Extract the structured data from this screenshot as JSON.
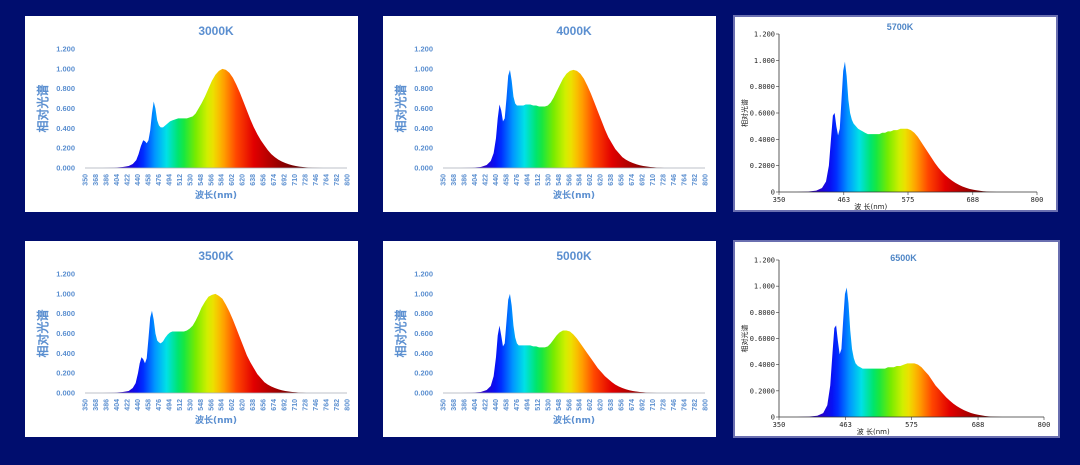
{
  "colors": {
    "background": "#000d6e",
    "panel": "#ffffff",
    "label_blue": "#5b8fd0",
    "axis": "#9aa0a8"
  },
  "chart_data": [
    {
      "type": "area",
      "style": 1,
      "title": "3000K",
      "xlabel": "波长(nm)",
      "ylabel": "相对光谱",
      "xlim": [
        350,
        800
      ],
      "ylim": [
        0,
        1.2
      ],
      "yticks": [
        "0.000",
        "0.200",
        "0.400",
        "0.600",
        "0.800",
        "1.000",
        "1.200"
      ],
      "xticks": [
        "350",
        "368",
        "386",
        "404",
        "422",
        "440",
        "458",
        "476",
        "494",
        "512",
        "530",
        "548",
        "566",
        "584",
        "602",
        "620",
        "638",
        "656",
        "674",
        "692",
        "710",
        "728",
        "746",
        "764",
        "782",
        "800"
      ],
      "x": [
        350,
        380,
        400,
        415,
        425,
        432,
        438,
        442,
        446,
        450,
        453,
        456,
        459,
        462,
        465,
        468,
        471,
        474,
        477,
        480,
        484,
        488,
        492,
        496,
        500,
        505,
        510,
        515,
        520,
        525,
        530,
        535,
        540,
        545,
        550,
        556,
        562,
        568,
        574,
        580,
        586,
        592,
        598,
        604,
        610,
        616,
        622,
        628,
        634,
        640,
        646,
        652,
        658,
        664,
        670,
        676,
        682,
        688,
        694,
        700,
        706,
        712,
        718,
        724,
        730,
        740,
        750,
        760,
        770,
        780,
        790,
        800
      ],
      "y": [
        0,
        0,
        0.003,
        0.01,
        0.02,
        0.04,
        0.08,
        0.14,
        0.22,
        0.28,
        0.27,
        0.25,
        0.28,
        0.38,
        0.55,
        0.67,
        0.6,
        0.48,
        0.43,
        0.41,
        0.41,
        0.43,
        0.45,
        0.47,
        0.48,
        0.49,
        0.5,
        0.5,
        0.5,
        0.5,
        0.51,
        0.52,
        0.55,
        0.6,
        0.65,
        0.72,
        0.8,
        0.88,
        0.94,
        0.98,
        1.0,
        0.99,
        0.96,
        0.91,
        0.84,
        0.76,
        0.67,
        0.58,
        0.49,
        0.41,
        0.34,
        0.28,
        0.23,
        0.18,
        0.14,
        0.11,
        0.085,
        0.065,
        0.05,
        0.038,
        0.028,
        0.02,
        0.014,
        0.01,
        0.006,
        0.003,
        0.001,
        0,
        0,
        0,
        0,
        0
      ]
    },
    {
      "type": "area",
      "style": 1,
      "title": "4000K",
      "xlabel": "波长(nm)",
      "ylabel": "相对光谱",
      "xlim": [
        350,
        800
      ],
      "ylim": [
        0,
        1.2
      ],
      "yticks": [
        "0.000",
        "0.200",
        "0.400",
        "0.600",
        "0.800",
        "1.000",
        "1.200"
      ],
      "xticks": [
        "350",
        "368",
        "386",
        "404",
        "422",
        "440",
        "458",
        "476",
        "494",
        "512",
        "530",
        "548",
        "566",
        "584",
        "602",
        "620",
        "638",
        "656",
        "674",
        "692",
        "710",
        "728",
        "746",
        "764",
        "782",
        "800"
      ],
      "x": [
        350,
        380,
        400,
        415,
        425,
        432,
        437,
        441,
        444,
        447,
        450,
        453,
        456,
        459,
        462,
        465,
        468,
        471,
        474,
        477,
        480,
        484,
        488,
        492,
        496,
        500,
        505,
        510,
        515,
        520,
        525,
        530,
        535,
        540,
        545,
        550,
        556,
        562,
        568,
        574,
        580,
        586,
        592,
        598,
        604,
        610,
        616,
        622,
        628,
        634,
        640,
        646,
        652,
        658,
        664,
        670,
        676,
        682,
        688,
        694,
        700,
        706,
        712,
        718,
        724,
        730,
        740,
        750,
        760,
        770,
        780,
        790,
        800
      ],
      "y": [
        0,
        0,
        0.003,
        0.01,
        0.03,
        0.07,
        0.15,
        0.3,
        0.5,
        0.64,
        0.58,
        0.47,
        0.5,
        0.7,
        0.93,
        0.99,
        0.88,
        0.72,
        0.65,
        0.63,
        0.63,
        0.63,
        0.63,
        0.64,
        0.64,
        0.64,
        0.63,
        0.63,
        0.62,
        0.62,
        0.62,
        0.63,
        0.66,
        0.71,
        0.77,
        0.83,
        0.9,
        0.95,
        0.98,
        0.99,
        0.98,
        0.95,
        0.9,
        0.83,
        0.75,
        0.66,
        0.57,
        0.48,
        0.39,
        0.31,
        0.25,
        0.19,
        0.15,
        0.11,
        0.085,
        0.065,
        0.05,
        0.038,
        0.028,
        0.02,
        0.015,
        0.01,
        0.007,
        0.004,
        0.002,
        0,
        0,
        0,
        0,
        0,
        0,
        0,
        0
      ]
    },
    {
      "type": "area",
      "style": 2,
      "title": "5700K",
      "xlabel": "波 长(nm)",
      "ylabel": "相对光谱",
      "xlim": [
        350,
        800
      ],
      "ylim": [
        0,
        1.2
      ],
      "yticks": [
        "0",
        "0.2000",
        "0.4000",
        "0.6000",
        "0.8000",
        "1.000",
        "1.200"
      ],
      "xticks": [
        "350",
        "463",
        "575",
        "688",
        "800"
      ],
      "x": [
        350,
        380,
        400,
        415,
        425,
        432,
        437,
        441,
        444,
        447,
        450,
        453,
        456,
        459,
        462,
        465,
        468,
        471,
        474,
        477,
        480,
        484,
        488,
        492,
        496,
        500,
        505,
        510,
        515,
        520,
        525,
        530,
        535,
        540,
        545,
        550,
        556,
        562,
        568,
        574,
        580,
        586,
        592,
        598,
        604,
        610,
        616,
        622,
        628,
        634,
        640,
        646,
        652,
        658,
        664,
        670,
        676,
        682,
        688,
        694,
        700,
        706,
        712,
        718,
        724,
        730,
        740,
        750,
        760,
        770,
        780,
        790,
        800
      ],
      "y": [
        0,
        0,
        0.003,
        0.01,
        0.03,
        0.08,
        0.2,
        0.42,
        0.58,
        0.6,
        0.5,
        0.43,
        0.48,
        0.7,
        0.92,
        0.99,
        0.88,
        0.7,
        0.6,
        0.55,
        0.52,
        0.5,
        0.48,
        0.47,
        0.46,
        0.45,
        0.44,
        0.44,
        0.44,
        0.44,
        0.44,
        0.45,
        0.45,
        0.46,
        0.46,
        0.47,
        0.47,
        0.48,
        0.48,
        0.48,
        0.47,
        0.45,
        0.42,
        0.38,
        0.34,
        0.3,
        0.26,
        0.22,
        0.185,
        0.155,
        0.128,
        0.105,
        0.085,
        0.068,
        0.054,
        0.042,
        0.032,
        0.024,
        0.018,
        0.013,
        0.009,
        0.006,
        0.004,
        0.002,
        0.001,
        0,
        0,
        0,
        0,
        0,
        0,
        0,
        0
      ]
    },
    {
      "type": "area",
      "style": 1,
      "title": "3500K",
      "xlabel": "波长(nm)",
      "ylabel": "相对光谱",
      "xlim": [
        350,
        800
      ],
      "ylim": [
        0,
        1.2
      ],
      "yticks": [
        "0.000",
        "0.200",
        "0.400",
        "0.600",
        "0.800",
        "1.000",
        "1.200"
      ],
      "xticks": [
        "350",
        "368",
        "386",
        "404",
        "422",
        "440",
        "458",
        "476",
        "494",
        "512",
        "530",
        "548",
        "566",
        "584",
        "602",
        "620",
        "638",
        "656",
        "674",
        "692",
        "710",
        "728",
        "746",
        "764",
        "782",
        "800"
      ],
      "x": [
        350,
        380,
        400,
        415,
        425,
        432,
        437,
        441,
        444,
        447,
        450,
        453,
        456,
        459,
        462,
        465,
        468,
        471,
        474,
        477,
        480,
        484,
        488,
        492,
        496,
        500,
        505,
        510,
        515,
        520,
        525,
        530,
        535,
        540,
        545,
        550,
        556,
        562,
        568,
        574,
        580,
        586,
        592,
        598,
        604,
        610,
        616,
        622,
        628,
        634,
        640,
        646,
        652,
        658,
        664,
        670,
        676,
        682,
        688,
        694,
        700,
        706,
        712,
        718,
        724,
        730,
        740,
        750,
        760,
        770,
        780,
        790,
        800
      ],
      "y": [
        0,
        0,
        0.003,
        0.01,
        0.02,
        0.05,
        0.1,
        0.2,
        0.3,
        0.36,
        0.34,
        0.3,
        0.35,
        0.55,
        0.76,
        0.83,
        0.74,
        0.6,
        0.53,
        0.51,
        0.5,
        0.52,
        0.56,
        0.59,
        0.61,
        0.62,
        0.62,
        0.62,
        0.62,
        0.62,
        0.63,
        0.65,
        0.68,
        0.73,
        0.79,
        0.86,
        0.92,
        0.97,
        0.99,
        1.0,
        0.98,
        0.95,
        0.89,
        0.82,
        0.74,
        0.65,
        0.56,
        0.47,
        0.38,
        0.31,
        0.25,
        0.19,
        0.15,
        0.11,
        0.085,
        0.065,
        0.05,
        0.038,
        0.028,
        0.02,
        0.015,
        0.01,
        0.007,
        0.004,
        0.002,
        0,
        0,
        0,
        0,
        0,
        0,
        0,
        0
      ]
    },
    {
      "type": "area",
      "style": 1,
      "title": "5000K",
      "xlabel": "波长(nm)",
      "ylabel": "相对光谱",
      "xlim": [
        350,
        800
      ],
      "ylim": [
        0,
        1.2
      ],
      "yticks": [
        "0.000",
        "0.200",
        "0.400",
        "0.600",
        "0.800",
        "1.000",
        "1.200"
      ],
      "xticks": [
        "350",
        "368",
        "386",
        "404",
        "422",
        "440",
        "458",
        "476",
        "494",
        "512",
        "530",
        "548",
        "566",
        "584",
        "602",
        "620",
        "638",
        "656",
        "674",
        "692",
        "710",
        "728",
        "746",
        "764",
        "782",
        "800"
      ],
      "x": [
        350,
        380,
        400,
        415,
        425,
        432,
        437,
        441,
        444,
        447,
        450,
        453,
        456,
        459,
        462,
        465,
        468,
        471,
        474,
        477,
        480,
        484,
        488,
        492,
        496,
        500,
        505,
        510,
        515,
        520,
        525,
        530,
        535,
        540,
        545,
        550,
        556,
        562,
        568,
        574,
        580,
        586,
        592,
        598,
        604,
        610,
        616,
        622,
        628,
        634,
        640,
        646,
        652,
        658,
        664,
        670,
        676,
        682,
        688,
        694,
        700,
        706,
        712,
        718,
        724,
        730,
        740,
        750,
        760,
        770,
        780,
        790,
        800
      ],
      "y": [
        0,
        0,
        0.003,
        0.01,
        0.03,
        0.07,
        0.17,
        0.36,
        0.58,
        0.68,
        0.58,
        0.47,
        0.5,
        0.72,
        0.94,
        1.0,
        0.88,
        0.68,
        0.56,
        0.5,
        0.48,
        0.48,
        0.48,
        0.48,
        0.48,
        0.48,
        0.47,
        0.47,
        0.46,
        0.46,
        0.46,
        0.47,
        0.5,
        0.54,
        0.58,
        0.61,
        0.63,
        0.63,
        0.62,
        0.59,
        0.55,
        0.5,
        0.45,
        0.4,
        0.35,
        0.3,
        0.25,
        0.21,
        0.17,
        0.14,
        0.11,
        0.085,
        0.065,
        0.05,
        0.038,
        0.028,
        0.02,
        0.015,
        0.01,
        0.007,
        0.004,
        0.002,
        0.001,
        0,
        0,
        0,
        0,
        0,
        0,
        0,
        0,
        0,
        0
      ]
    },
    {
      "type": "area",
      "style": 2,
      "title": "6500K",
      "xlabel": "波 长(nm)",
      "ylabel": "相对光谱",
      "xlim": [
        350,
        800
      ],
      "ylim": [
        0,
        1.2
      ],
      "yticks": [
        "0",
        "0.2000",
        "0.4000",
        "0.6000",
        "0.8000",
        "1.000",
        "1.200"
      ],
      "xticks": [
        "350",
        "463",
        "575",
        "688",
        "800"
      ],
      "x": [
        350,
        380,
        400,
        415,
        425,
        432,
        437,
        441,
        444,
        447,
        450,
        453,
        456,
        459,
        462,
        465,
        468,
        471,
        474,
        477,
        480,
        484,
        488,
        492,
        496,
        500,
        505,
        510,
        515,
        520,
        525,
        530,
        535,
        540,
        545,
        550,
        556,
        562,
        568,
        574,
        580,
        586,
        592,
        598,
        604,
        610,
        616,
        622,
        628,
        634,
        640,
        646,
        652,
        658,
        664,
        670,
        676,
        682,
        688,
        694,
        700,
        706,
        712,
        718,
        724,
        730,
        740,
        750,
        760,
        770,
        780,
        790,
        800
      ],
      "y": [
        0,
        0,
        0.003,
        0.01,
        0.03,
        0.09,
        0.24,
        0.5,
        0.68,
        0.7,
        0.58,
        0.48,
        0.52,
        0.74,
        0.94,
        0.99,
        0.87,
        0.66,
        0.52,
        0.45,
        0.41,
        0.39,
        0.38,
        0.37,
        0.37,
        0.37,
        0.37,
        0.37,
        0.37,
        0.37,
        0.37,
        0.37,
        0.38,
        0.38,
        0.38,
        0.39,
        0.39,
        0.4,
        0.41,
        0.41,
        0.41,
        0.4,
        0.38,
        0.35,
        0.32,
        0.28,
        0.24,
        0.21,
        0.18,
        0.15,
        0.125,
        0.102,
        0.083,
        0.067,
        0.053,
        0.041,
        0.031,
        0.023,
        0.017,
        0.012,
        0.008,
        0.005,
        0.003,
        0.002,
        0.001,
        0,
        0,
        0,
        0,
        0,
        0,
        0,
        0
      ]
    }
  ]
}
